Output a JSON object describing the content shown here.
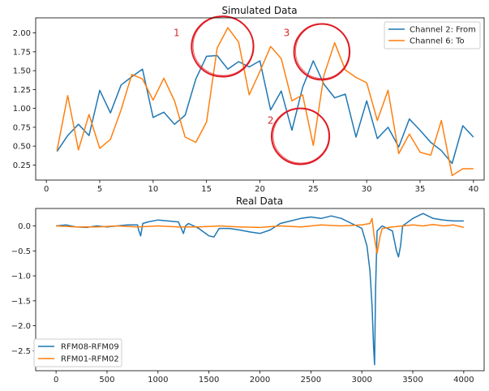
{
  "chart_data": [
    {
      "type": "line",
      "title": "Simulated Data",
      "xlim": [
        -1,
        41
      ],
      "ylim": [
        0.05,
        2.2
      ],
      "xticks": [
        0,
        5,
        10,
        15,
        20,
        25,
        30,
        35,
        40
      ],
      "yticks": [
        0.25,
        0.5,
        0.75,
        1.0,
        1.25,
        1.5,
        1.75,
        2.0
      ],
      "ytick_labels": [
        "0.25",
        "0.50",
        "0.75",
        "1.00",
        "1.25",
        "1.50",
        "1.75",
        "2.00"
      ],
      "legend": "top-right",
      "series": [
        {
          "name": "Channel 2: From",
          "color": "#1f77b4",
          "x": [
            1,
            2,
            3,
            4,
            5,
            6,
            7,
            8,
            9,
            10,
            11,
            12,
            13,
            14,
            15,
            16,
            17,
            18,
            19,
            20,
            21,
            22,
            23,
            24,
            25,
            26,
            27,
            28,
            29,
            30,
            31,
            32,
            33,
            34,
            35,
            36,
            37,
            38,
            39,
            40
          ],
          "y": [
            0.43,
            0.64,
            0.79,
            0.64,
            1.24,
            0.94,
            1.31,
            1.42,
            1.52,
            0.88,
            0.95,
            0.79,
            0.91,
            1.39,
            1.69,
            1.7,
            1.52,
            1.62,
            1.55,
            1.63,
            0.98,
            1.23,
            0.71,
            1.28,
            1.63,
            1.32,
            1.14,
            1.19,
            0.62,
            1.1,
            0.6,
            0.75,
            0.49,
            0.86,
            0.71,
            0.55,
            0.44,
            0.27,
            0.77,
            0.62
          ]
        },
        {
          "name": "Channel 6: To",
          "color": "#ff7f0e",
          "x": [
            1,
            2,
            3,
            4,
            5,
            6,
            7,
            8,
            9,
            10,
            11,
            12,
            13,
            14,
            15,
            16,
            17,
            18,
            19,
            20,
            21,
            22,
            23,
            24,
            25,
            26,
            27,
            28,
            29,
            30,
            31,
            32,
            33,
            34,
            35,
            36,
            37,
            38,
            39,
            40
          ],
          "y": [
            0.44,
            1.17,
            0.45,
            0.92,
            0.47,
            0.59,
            0.98,
            1.45,
            1.39,
            1.11,
            1.4,
            1.1,
            0.62,
            0.55,
            0.82,
            1.8,
            2.07,
            1.88,
            1.18,
            1.49,
            1.82,
            1.66,
            1.1,
            1.18,
            0.51,
            1.44,
            1.87,
            1.51,
            1.41,
            1.34,
            0.84,
            1.24,
            0.4,
            0.66,
            0.42,
            0.38,
            0.84,
            0.11,
            0.2,
            0.2
          ]
        }
      ],
      "annotations": [
        {
          "label": "1",
          "x": 12.2,
          "y": 2.0
        },
        {
          "label": "2",
          "x": 21.0,
          "y": 0.84
        },
        {
          "label": "3",
          "x": 22.5,
          "y": 2.0
        }
      ],
      "circles": [
        {
          "cx": 16.5,
          "cy": 1.82,
          "rx": 2.9,
          "ry": 0.4
        },
        {
          "cx": 25.8,
          "cy": 1.75,
          "rx": 2.6,
          "ry": 0.37
        },
        {
          "cx": 23.8,
          "cy": 0.63,
          "rx": 2.7,
          "ry": 0.37
        }
      ]
    },
    {
      "type": "line",
      "title": "Real Data",
      "xlim": [
        -200,
        4200
      ],
      "ylim": [
        -2.9,
        0.35
      ],
      "xticks": [
        0,
        500,
        1000,
        1500,
        2000,
        2500,
        3000,
        3500,
        4000
      ],
      "yticks": [
        0.0,
        -0.5,
        -1.0,
        -1.5,
        -2.0,
        -2.5
      ],
      "ytick_labels": [
        "0.0",
        "−0.5",
        "−1.0",
        "−1.5",
        "−2.0",
        "−2.5"
      ],
      "legend": "bottom-left",
      "series": [
        {
          "name": "RFM08-RFM09",
          "color": "#1f77b4",
          "x": [
            0,
            100,
            200,
            300,
            400,
            500,
            600,
            700,
            800,
            810,
            830,
            850,
            900,
            1000,
            1100,
            1200,
            1250,
            1270,
            1300,
            1400,
            1500,
            1550,
            1600,
            1700,
            1800,
            1900,
            2000,
            2100,
            2200,
            2300,
            2400,
            2500,
            2600,
            2700,
            2800,
            2900,
            2950,
            3000,
            3050,
            3080,
            3100,
            3115,
            3125,
            3135,
            3150,
            3200,
            3300,
            3340,
            3360,
            3380,
            3400,
            3500,
            3600,
            3700,
            3800,
            3900,
            4000
          ],
          "y": [
            0.0,
            0.02,
            -0.02,
            -0.03,
            0.0,
            -0.02,
            0.0,
            0.02,
            0.02,
            -0.08,
            -0.2,
            0.05,
            0.08,
            0.12,
            0.1,
            0.08,
            -0.15,
            0.0,
            0.05,
            -0.05,
            -0.2,
            -0.22,
            -0.05,
            -0.05,
            -0.08,
            -0.12,
            -0.15,
            -0.08,
            0.05,
            0.1,
            0.15,
            0.18,
            0.15,
            0.2,
            0.15,
            0.05,
            0.0,
            -0.05,
            -0.4,
            -0.9,
            -1.6,
            -2.4,
            -2.78,
            -1.3,
            -0.1,
            0.0,
            -0.1,
            -0.5,
            -0.62,
            -0.4,
            0.0,
            0.15,
            0.25,
            0.15,
            0.12,
            0.1,
            0.1
          ]
        },
        {
          "name": "RFM01-RFM02",
          "color": "#ff7f0e",
          "x": [
            0,
            200,
            400,
            600,
            800,
            1000,
            1200,
            1400,
            1600,
            1800,
            2000,
            2200,
            2400,
            2600,
            2800,
            3000,
            3080,
            3100,
            3120,
            3150,
            3180,
            3200,
            3300,
            3400,
            3500,
            3600,
            3700,
            3800,
            3900,
            4000
          ],
          "y": [
            0.0,
            -0.02,
            -0.02,
            0.0,
            -0.02,
            0.0,
            -0.02,
            -0.02,
            0.0,
            -0.02,
            -0.03,
            0.0,
            -0.02,
            0.02,
            0.0,
            0.02,
            0.05,
            0.15,
            -0.2,
            -0.55,
            -0.2,
            -0.05,
            -0.02,
            0.0,
            0.02,
            0.0,
            0.03,
            0.0,
            0.02,
            -0.03
          ]
        }
      ]
    }
  ]
}
